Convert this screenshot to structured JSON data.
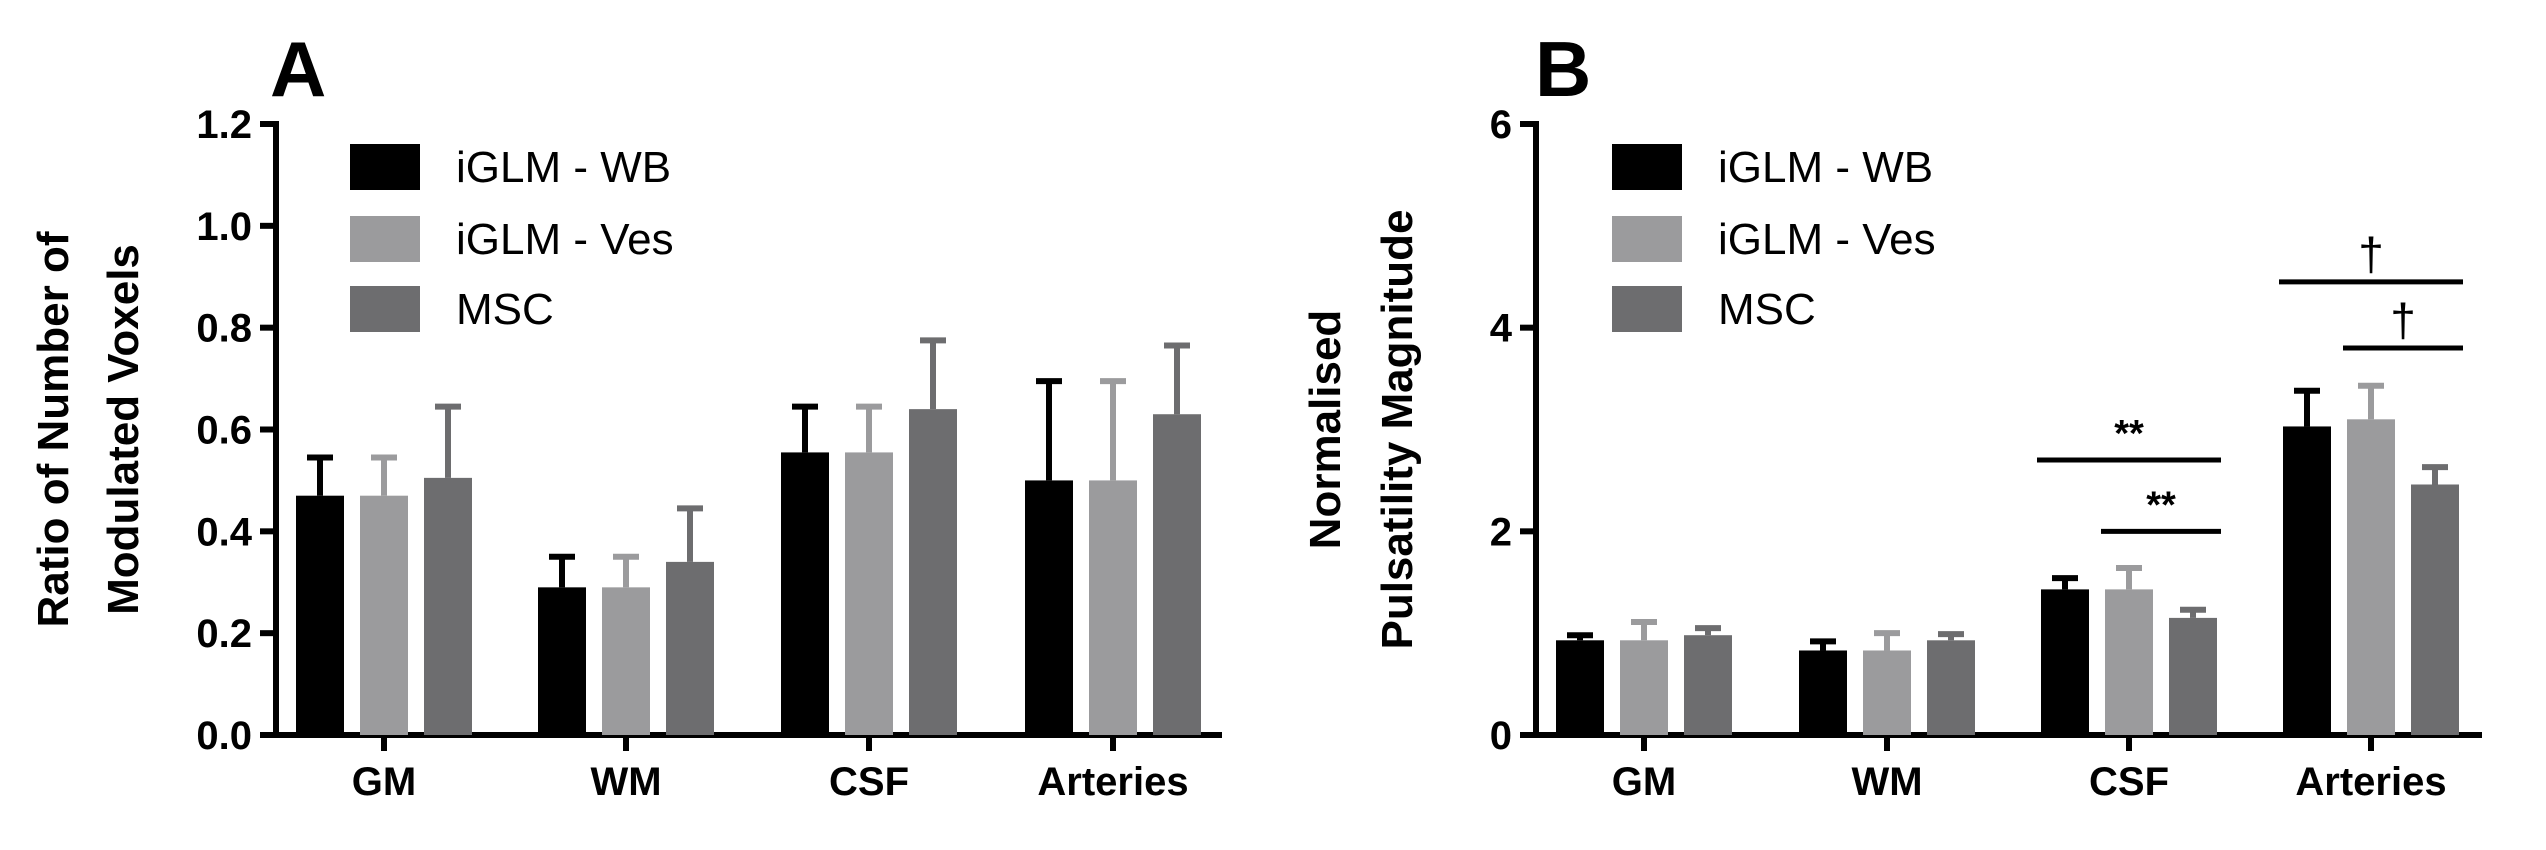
{
  "chart_data": [
    {
      "type": "bar",
      "panel_label": "A",
      "ylabel_lines": [
        "Ratio of Number of",
        "Modulated Voxels"
      ],
      "ylim": [
        0,
        1.2
      ],
      "yticks": [
        0.0,
        0.2,
        0.4,
        0.6,
        0.8,
        1.0,
        1.2
      ],
      "ytick_labels": [
        "0.0",
        "0.2",
        "0.4",
        "0.6",
        "0.8",
        "1.0",
        "1.2"
      ],
      "categories": [
        "GM",
        "WM",
        "CSF",
        "Arteries"
      ],
      "legend_position": "top-left",
      "series": [
        {
          "name": "iGLM - WB",
          "color": "#000000",
          "values": [
            0.47,
            0.29,
            0.555,
            0.5
          ],
          "errors": [
            0.075,
            0.06,
            0.09,
            0.195
          ]
        },
        {
          "name": "iGLM - Ves",
          "color": "#9b9b9d",
          "values": [
            0.47,
            0.29,
            0.555,
            0.5
          ],
          "errors": [
            0.075,
            0.06,
            0.09,
            0.195
          ]
        },
        {
          "name": "MSC",
          "color": "#6d6d6f",
          "values": [
            0.505,
            0.34,
            0.64,
            0.63
          ],
          "errors": [
            0.14,
            0.105,
            0.135,
            0.135
          ]
        }
      ],
      "annotations": []
    },
    {
      "type": "bar",
      "panel_label": "B",
      "ylabel_lines": [
        "Normalised",
        "Pulsatility Magnitude"
      ],
      "ylim": [
        0,
        6
      ],
      "yticks": [
        0,
        2,
        4,
        6
      ],
      "ytick_labels": [
        "0",
        "2",
        "4",
        "6"
      ],
      "categories": [
        "GM",
        "WM",
        "CSF",
        "Arteries"
      ],
      "legend_position": "top-left",
      "series": [
        {
          "name": "iGLM - WB",
          "color": "#000000",
          "values": [
            0.93,
            0.83,
            1.43,
            3.03
          ],
          "errors": [
            0.05,
            0.09,
            0.11,
            0.35
          ]
        },
        {
          "name": "iGLM - Ves",
          "color": "#9b9b9d",
          "values": [
            0.93,
            0.83,
            1.43,
            3.1
          ],
          "errors": [
            0.18,
            0.17,
            0.21,
            0.33
          ]
        },
        {
          "name": "MSC",
          "color": "#6d6d6f",
          "values": [
            0.98,
            0.93,
            1.15,
            2.46
          ],
          "errors": [
            0.07,
            0.06,
            0.08,
            0.17
          ]
        }
      ],
      "annotations": [
        {
          "text": "**",
          "category": 2,
          "from_series": 0,
          "to_series": 2,
          "y": 2.7,
          "style": "sig"
        },
        {
          "text": "**",
          "category": 2,
          "from_series": 1,
          "to_series": 2,
          "y": 2.0,
          "style": "sig"
        },
        {
          "text": "†",
          "category": 3,
          "from_series": 0,
          "to_series": 2,
          "y": 4.45,
          "style": "dagger"
        },
        {
          "text": "†",
          "category": 3,
          "from_series": 1,
          "to_series": 2,
          "y": 3.8,
          "style": "dagger"
        }
      ]
    }
  ]
}
